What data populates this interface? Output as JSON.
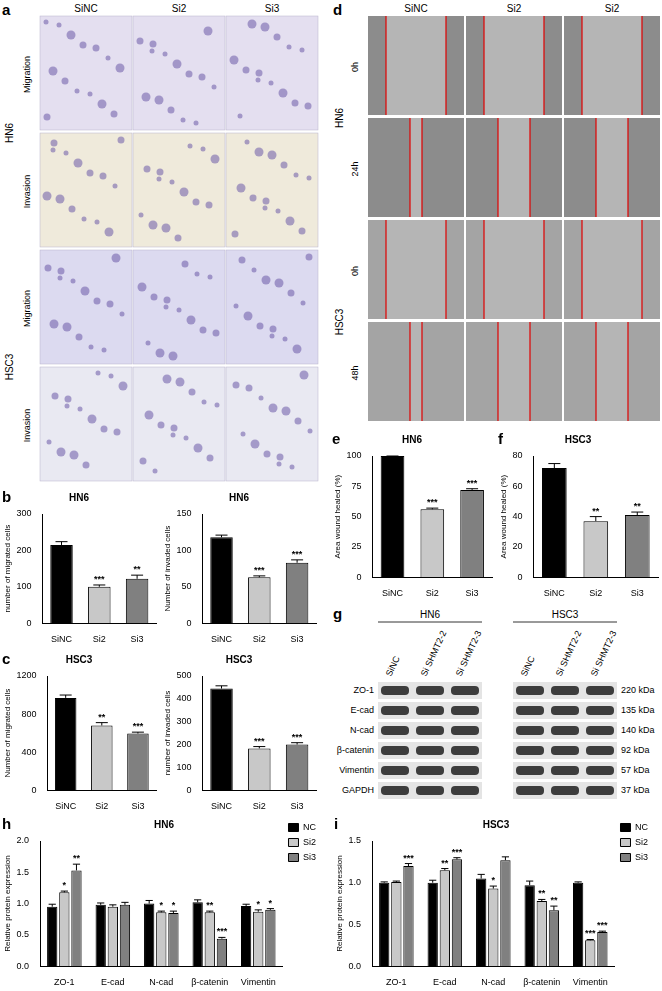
{
  "chart_data": [
    {
      "panel": "b",
      "type": "bar",
      "title": "HN6",
      "y_label": "number of migrated cells",
      "categories": [
        "SiNC",
        "Si2",
        "Si3"
      ],
      "values": [
        215,
        100,
        122
      ],
      "errors": [
        9,
        5,
        10
      ],
      "annotations": [
        null,
        "***",
        "**"
      ],
      "colors": [
        "#000000",
        "#c8c8c8",
        "#808080"
      ],
      "ylim": [
        0,
        300
      ],
      "yticks": [
        0,
        100,
        200,
        300
      ],
      "grid": false
    },
    {
      "type": "bar",
      "title": "HN6",
      "y_label": "Number of invaded cells",
      "categories": [
        "SiNC",
        "Si2",
        "Si3"
      ],
      "values": [
        118,
        63,
        83
      ],
      "errors": [
        3,
        2,
        4
      ],
      "annotations": [
        null,
        "***",
        "***"
      ],
      "colors": [
        "#000000",
        "#c8c8c8",
        "#808080"
      ],
      "ylim": [
        0,
        150
      ],
      "yticks": [
        0,
        50,
        100,
        150
      ],
      "grid": false
    },
    {
      "panel": "c",
      "type": "bar",
      "title": "HSC3",
      "y_label": "Number of migrated cells",
      "categories": [
        "SiNC",
        "Si2",
        "Si3"
      ],
      "values": [
        970,
        680,
        595
      ],
      "errors": [
        30,
        30,
        15
      ],
      "annotations": [
        null,
        "**",
        "***"
      ],
      "colors": [
        "#000000",
        "#c8c8c8",
        "#808080"
      ],
      "ylim": [
        0,
        1200
      ],
      "yticks": [
        0,
        400,
        800,
        1200
      ],
      "grid": false
    },
    {
      "type": "bar",
      "title": "HSC3",
      "y_label": "number of invaded cells",
      "categories": [
        "SiNC",
        "Si2",
        "Si3"
      ],
      "values": [
        445,
        183,
        200
      ],
      "errors": [
        12,
        8,
        8
      ],
      "annotations": [
        null,
        "***",
        "***"
      ],
      "colors": [
        "#000000",
        "#c8c8c8",
        "#808080"
      ],
      "ylim": [
        0,
        500
      ],
      "yticks": [
        0,
        100,
        200,
        300,
        400,
        500
      ],
      "grid": false
    },
    {
      "panel": "e",
      "type": "bar",
      "title": "HN6",
      "y_label": "Area wound healed (%)",
      "categories": [
        "SiNC",
        "Si2",
        "Si3"
      ],
      "values": [
        100,
        56,
        72
      ],
      "errors": [
        0,
        1,
        1
      ],
      "annotations": [
        null,
        "***",
        "***"
      ],
      "colors": [
        "#000000",
        "#c8c8c8",
        "#808080"
      ],
      "ylim": [
        0,
        100
      ],
      "yticks": [
        0,
        25,
        50,
        75,
        100
      ],
      "grid": false
    },
    {
      "panel": "f",
      "type": "bar",
      "title": "HSC3",
      "y_label": "Area wound healed (%)",
      "categories": [
        "SiNC",
        "Si2",
        "Si3"
      ],
      "values": [
        72,
        37,
        41
      ],
      "errors": [
        3,
        3,
        2
      ],
      "annotations": [
        null,
        "**",
        "**"
      ],
      "colors": [
        "#000000",
        "#c8c8c8",
        "#808080"
      ],
      "ylim": [
        0,
        80
      ],
      "yticks": [
        0,
        20,
        40,
        60,
        80
      ],
      "grid": false
    },
    {
      "panel": "h",
      "type": "bar",
      "title": "HN6",
      "y_label": "Relative protein expression",
      "categories": [
        "ZO-1",
        "E-cad",
        "N-cad",
        "β-catenin",
        "Vimentin"
      ],
      "series": [
        {
          "name": "NC",
          "color": "#000000",
          "values": [
            0.95,
            0.98,
            1.0,
            1.02,
            0.96
          ],
          "errors": [
            0.04,
            0.03,
            0.05,
            0.04,
            0.03
          ],
          "annotations": [
            null,
            null,
            null,
            null,
            null
          ]
        },
        {
          "name": "Si2",
          "color": "#c8c8c8",
          "values": [
            1.18,
            0.95,
            0.86,
            0.86,
            0.87
          ],
          "errors": [
            0.02,
            0.03,
            0.02,
            0.02,
            0.03
          ],
          "annotations": [
            "*",
            null,
            "*",
            "**",
            "*"
          ]
        },
        {
          "name": "Si3",
          "color": "#808080",
          "values": [
            1.53,
            0.98,
            0.85,
            0.44,
            0.9
          ],
          "errors": [
            0.1,
            0.04,
            0.03,
            0.02,
            0.02
          ],
          "annotations": [
            "**",
            null,
            "*",
            "***",
            "*"
          ]
        }
      ],
      "ylim": [
        0,
        2
      ],
      "yticks": [
        {
          "value": 0,
          "label": "0.0"
        },
        0.5,
        {
          "value": 1,
          "label": "1.0"
        },
        1.5,
        {
          "value": 2,
          "label": "2.0"
        }
      ],
      "legend": "top-right",
      "grid": false
    },
    {
      "panel": "i",
      "type": "bar",
      "title": "HSC3",
      "y_label": "Relative protein expression",
      "categories": [
        "ZO-1",
        "E-cad",
        "N-cad",
        "β-catenin",
        "Vimentin"
      ],
      "series": [
        {
          "name": "NC",
          "color": "#000000",
          "values": [
            1.0,
            1.0,
            1.05,
            0.97,
            1.0
          ],
          "errors": [
            0.01,
            0.03,
            0.05,
            0.05,
            0.01
          ],
          "annotations": [
            null,
            null,
            null,
            null,
            null
          ]
        },
        {
          "name": "Si2",
          "color": "#c8c8c8",
          "values": [
            1.01,
            1.15,
            0.93,
            0.78,
            0.31
          ],
          "errors": [
            0.01,
            0.02,
            0.03,
            0.02,
            0.01
          ],
          "annotations": [
            null,
            "**",
            "*",
            "**",
            "***"
          ]
        },
        {
          "name": "Si3",
          "color": "#808080",
          "values": [
            1.2,
            1.28,
            1.27,
            0.67,
            0.41
          ],
          "errors": [
            0.03,
            0.02,
            0.04,
            0.05,
            0.01
          ],
          "annotations": [
            "***",
            "***",
            null,
            "**",
            "***"
          ]
        }
      ],
      "ylim": [
        0,
        1.5
      ],
      "yticks": [
        {
          "value": 0,
          "label": "0.0"
        },
        0.5,
        {
          "value": 1,
          "label": "1.0"
        },
        1.5
      ],
      "legend": "top-right",
      "grid": false
    }
  ],
  "image_panels": {
    "a": {
      "columns": [
        "SiNC",
        "Si2",
        "Si3"
      ],
      "rows": [
        {
          "cell_line": "HN6",
          "assays": [
            "Migration",
            "Invasion"
          ]
        },
        {
          "cell_line": "HSC3",
          "assays": [
            "Migration",
            "Invasion"
          ]
        }
      ]
    },
    "d": {
      "columns": [
        "SiNC",
        "Si2",
        "Si2"
      ],
      "rows": [
        {
          "cell_line": "HN6",
          "times": [
            "0h",
            "24h"
          ]
        },
        {
          "cell_line": "HSC3",
          "times": [
            "0h",
            "48h"
          ]
        }
      ]
    },
    "g": {
      "groups": [
        {
          "cell_line": "HN6",
          "lanes": [
            "SiNC",
            "Si SHMT2-2",
            "Si SHMT2-3"
          ]
        },
        {
          "cell_line": "HSC3",
          "lanes": [
            "SiNC",
            "Si SHMT2-2",
            "Si SHMT2-3"
          ]
        }
      ],
      "bands": [
        {
          "protein": "ZO-1",
          "size": "220 kDa"
        },
        {
          "protein": "E-cad",
          "size": "135 kDa"
        },
        {
          "protein": "N-cad",
          "size": "140 kDa"
        },
        {
          "protein": "β-catenin",
          "size": "92 kDa"
        },
        {
          "protein": "Vimentin",
          "size": "57 kDa"
        },
        {
          "protein": "GAPDH",
          "size": "37 kDa"
        }
      ]
    }
  }
}
